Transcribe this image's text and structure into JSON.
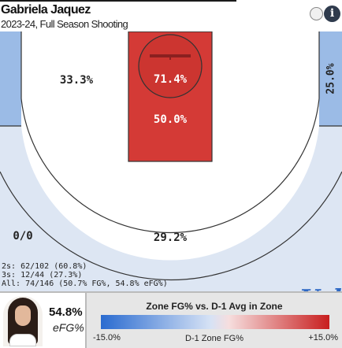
{
  "header": {
    "player_name": "Gabriela Jaquez",
    "subtitle": "2023-24, Full Season Shooting",
    "toggle_icon": "toggle-circle-icon",
    "info_icon": "info-icon",
    "info_glyph": "i"
  },
  "zones": {
    "left_corner_three": "",
    "left_wing_mid": "33.3%",
    "restricted_area": "71.4%",
    "paint": "50.0%",
    "right_corner_three": "25.0%",
    "left_wing_three": "0/0",
    "top_three": "29.2%"
  },
  "stats": {
    "twos": "2s: 62/102 (60.8%)",
    "threes": "3s: 12/44 (27.3%)",
    "all": "All: 74/146 (50.7% FG%, 54.8% eFG%)"
  },
  "team_logo": "Ucla",
  "footer": {
    "efg_value": "54.8%",
    "efg_label": "eFG%",
    "legend_title": "Zone FG% vs. D-1 Avg in Zone",
    "legend_min": "-15.0%",
    "legend_mid": "D-1 Zone FG%",
    "legend_max": "+15.0%"
  },
  "colors": {
    "hot": "#d43a36",
    "cold_light": "#dde6f3",
    "cold": "#9bbbe6",
    "neutral": "#ffffff"
  }
}
